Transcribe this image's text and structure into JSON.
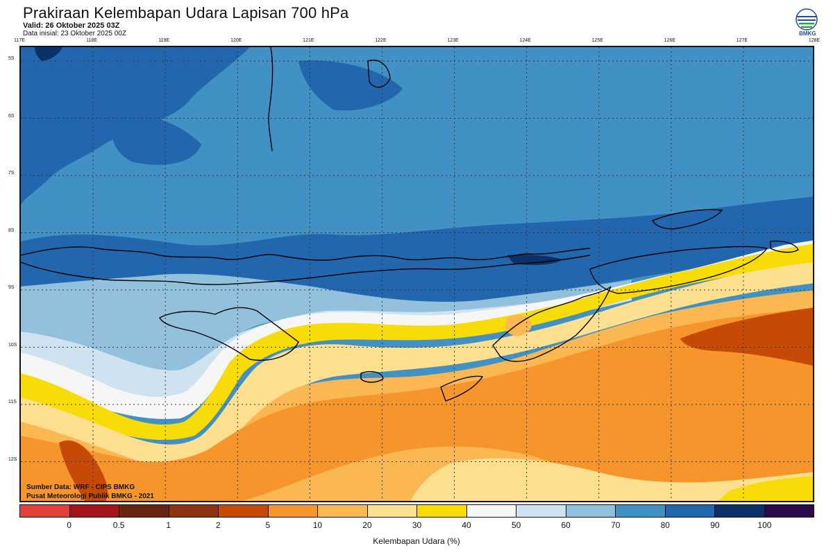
{
  "header": {
    "title": "Prakiraan Kelembapan Udara Lapisan 700 hPa",
    "valid": "Valid: 26 Oktober 2025 03Z",
    "initial": "Data inisial: 23 Oktober 2025 00Z"
  },
  "logo": {
    "text": "BMKG"
  },
  "axes": {
    "lon_labels": [
      "117E",
      "118E",
      "119E",
      "120E",
      "121E",
      "122E",
      "123E",
      "124E",
      "125E",
      "126E",
      "127E",
      "128E"
    ],
    "lat_labels": [
      "5S",
      "6S",
      "7S",
      "8S",
      "9S",
      "10S",
      "11S",
      "12S"
    ]
  },
  "credits": {
    "source": "Sumber Data: WRF - CIPS BMKG",
    "center": "Pusat Meteorologi Publik BMKG - 2021"
  },
  "colorbar": {
    "colors": [
      "#e0413a",
      "#a3141b",
      "#6a2311",
      "#8c3510",
      "#c54a06",
      "#f7952d",
      "#fbb852",
      "#fde08f",
      "#f8dc07",
      "#f6f6f6",
      "#cfe2ef",
      "#93c1dd",
      "#4191c4",
      "#2266ad",
      "#0a3268",
      "#2c0a4d"
    ],
    "ticks": [
      "0",
      "0.5",
      "1",
      "2",
      "5",
      "10",
      "20",
      "30",
      "40",
      "50",
      "60",
      "70",
      "80",
      "90",
      "100"
    ],
    "label": "Kelembapan Udara (%)"
  },
  "field_colors": {
    "dark_blue": "#2266ad",
    "mid_blue": "#4191c4",
    "light_blue": "#93c1dd",
    "pale_blue": "#cfe2ef",
    "white": "#f6f6f6",
    "yellow": "#f8dc07",
    "light_orange": "#fde08f",
    "orange_light": "#fbb852",
    "orange": "#f7952d",
    "dark_orange": "#c54a06",
    "navy": "#0a3268"
  }
}
